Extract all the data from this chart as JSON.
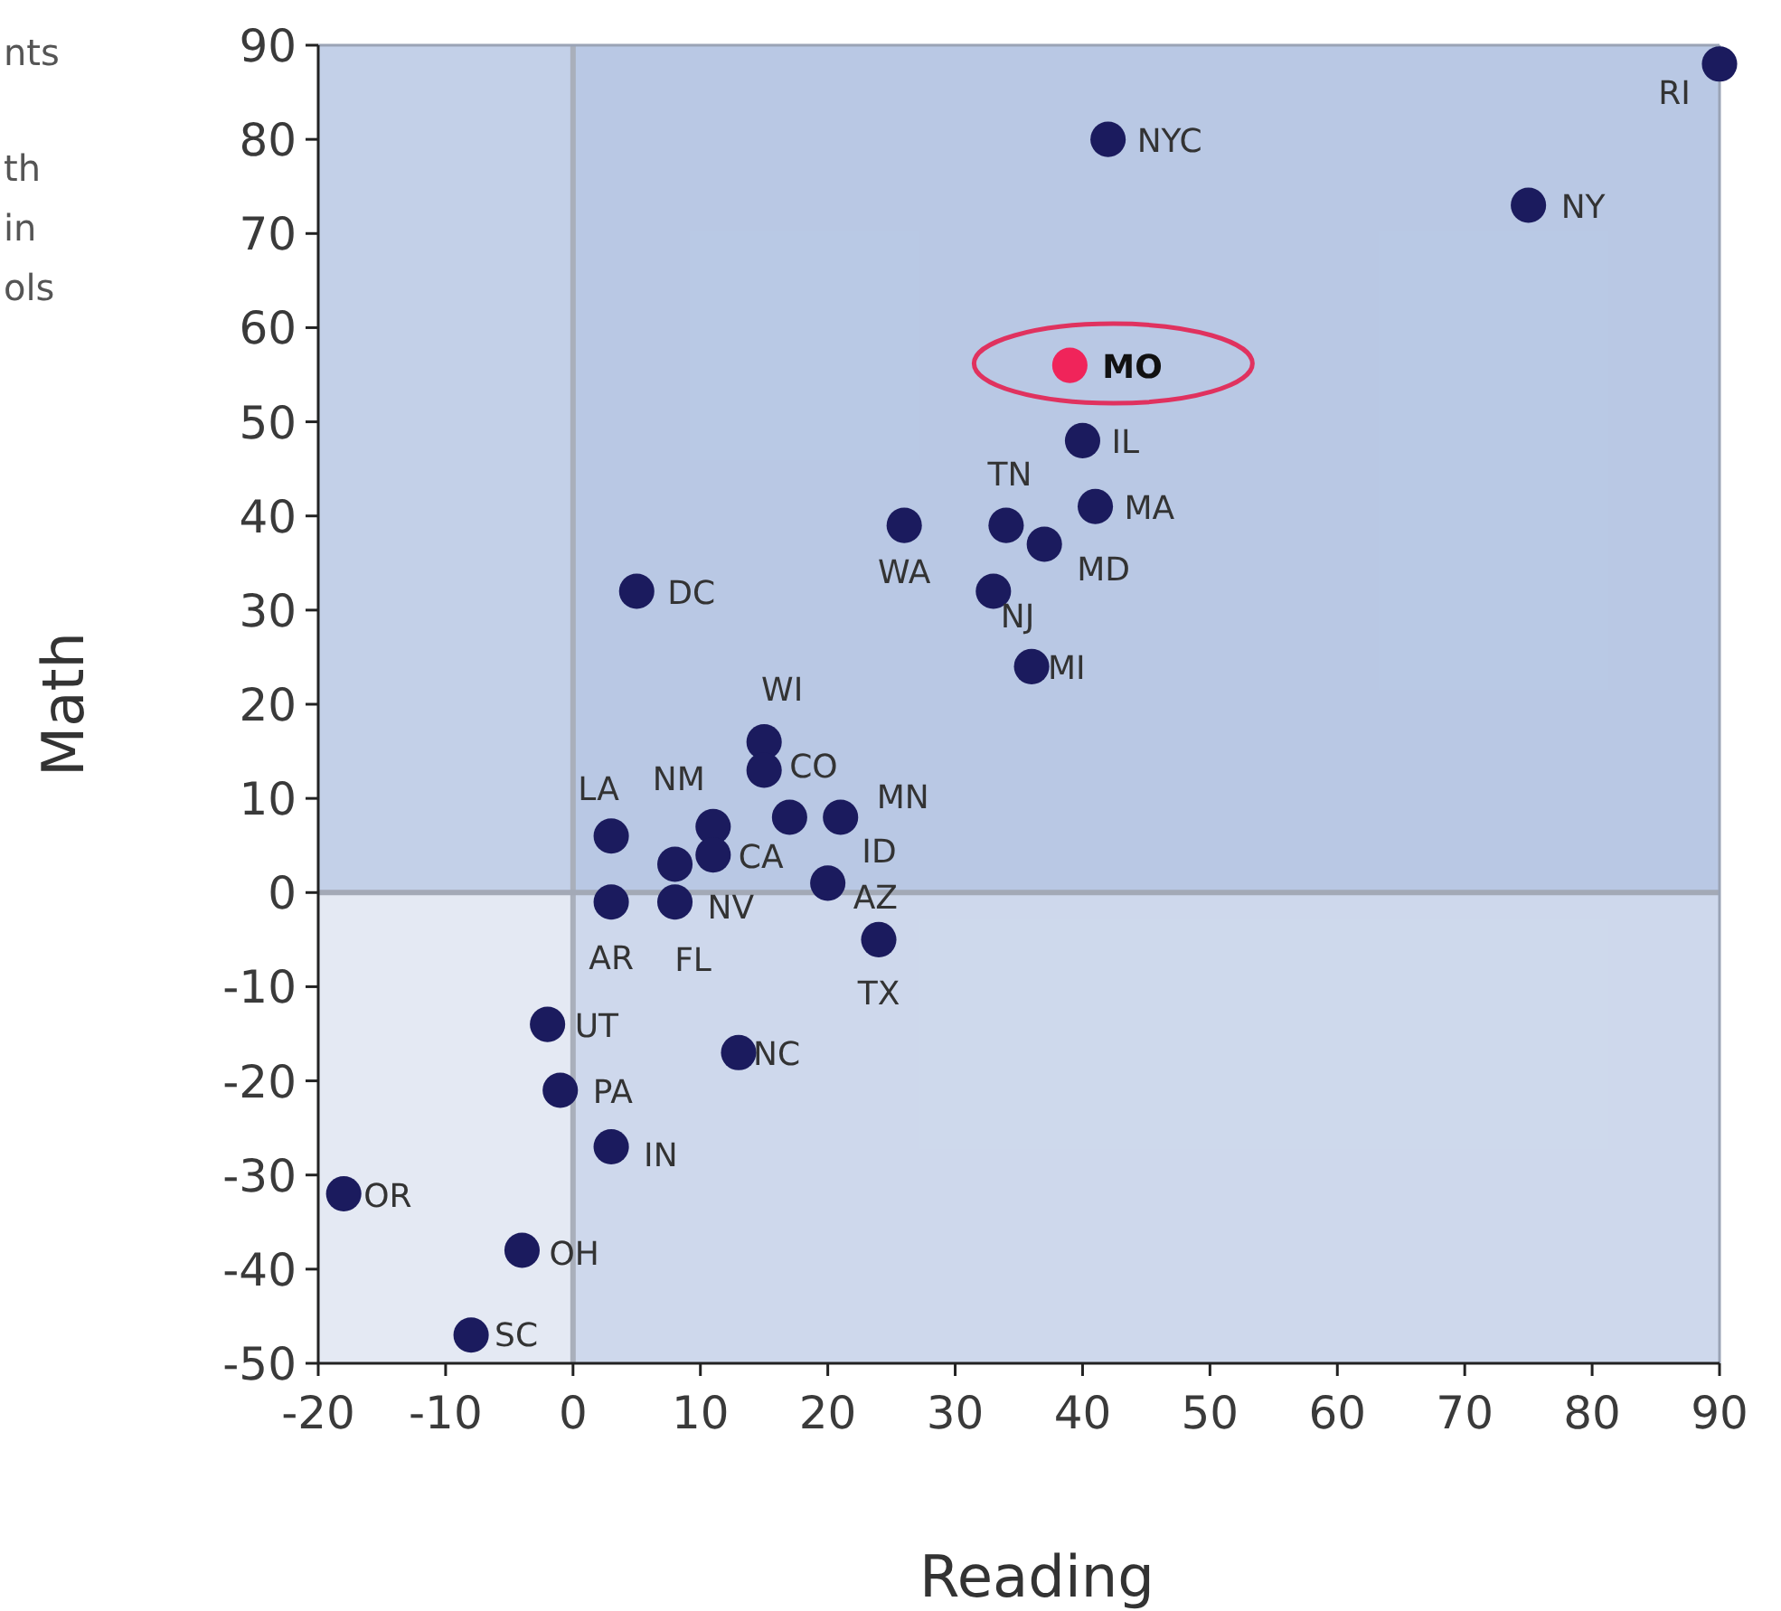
{
  "chart_data": {
    "type": "scatter",
    "xlabel": "Reading",
    "ylabel": "Math",
    "x": [
      90,
      42,
      75,
      39,
      40,
      34,
      41,
      26,
      37,
      33,
      36,
      5,
      15,
      15,
      3,
      11,
      11,
      21,
      17,
      8,
      3,
      8,
      20,
      24,
      -2,
      13,
      -1,
      3,
      -18,
      -4,
      -8
    ],
    "values": [
      88,
      80,
      73,
      56,
      48,
      39,
      41,
      39,
      37,
      32,
      24,
      32,
      16,
      13,
      6,
      7,
      4,
      8,
      8,
      3,
      -1,
      -1,
      1,
      -5,
      -14,
      -17,
      -21,
      -27,
      -32,
      -38,
      -47
    ],
    "colors": [
      "#1b1b5e",
      "#1b1b5e",
      "#1b1b5e",
      "#f0245a",
      "#1b1b5e",
      "#1b1b5e",
      "#1b1b5e",
      "#1b1b5e",
      "#1b1b5e",
      "#1b1b5e",
      "#1b1b5e",
      "#1b1b5e",
      "#1b1b5e",
      "#1b1b5e",
      "#1b1b5e",
      "#1b1b5e",
      "#1b1b5e",
      "#1b1b5e",
      "#1b1b5e",
      "#1b1b5e",
      "#1b1b5e",
      "#1b1b5e",
      "#1b1b5e",
      "#1b1b5e",
      "#1b1b5e",
      "#1b1b5e",
      "#1b1b5e",
      "#1b1b5e",
      "#1b1b5e",
      "#1b1b5e",
      "#1b1b5e"
    ],
    "marker": "circle",
    "xlim": [
      -20,
      90
    ],
    "xticks": [
      -20,
      -10,
      0,
      10,
      20,
      30,
      40,
      50,
      60,
      70,
      80,
      90
    ],
    "ylim": [
      -50,
      90
    ],
    "yticks": [
      -50,
      -40,
      -30,
      -20,
      -10,
      0,
      10,
      20,
      30,
      40,
      50,
      60,
      70,
      80,
      90
    ],
    "grid": false,
    "bands": [
      {
        "axis": "x",
        "from": 0,
        "to": 90,
        "color": "#bccbe6"
      },
      {
        "axis": "y",
        "from": 0,
        "to": 90,
        "color": "#a8bcdf"
      }
    ],
    "ref_lines": [
      {
        "axis": "x",
        "value": 0,
        "color": "#a9afbb"
      },
      {
        "axis": "y",
        "value": 0,
        "color": "#a3a9b6"
      }
    ],
    "annotations": [
      {
        "text": "RI",
        "x": 90,
        "y": 88
      },
      {
        "text": "NYC",
        "x": 42,
        "y": 80
      },
      {
        "text": "NY",
        "x": 75,
        "y": 73
      },
      {
        "text": "MO",
        "x": 39,
        "y": 56
      },
      {
        "text": "IL",
        "x": 40,
        "y": 48
      },
      {
        "text": "TN",
        "x": 34,
        "y": 39
      },
      {
        "text": "MA",
        "x": 41,
        "y": 41
      },
      {
        "text": "WA",
        "x": 26,
        "y": 39
      },
      {
        "text": "MD",
        "x": 37,
        "y": 37
      },
      {
        "text": "NJ",
        "x": 33,
        "y": 32
      },
      {
        "text": "MI",
        "x": 36,
        "y": 24
      },
      {
        "text": "DC",
        "x": 5,
        "y": 32
      },
      {
        "text": "WI",
        "x": 15,
        "y": 16
      },
      {
        "text": "CO",
        "x": 15,
        "y": 13
      },
      {
        "text": "LA",
        "x": 3,
        "y": 6
      },
      {
        "text": "NM",
        "x": 11,
        "y": 7
      },
      {
        "text": "CA",
        "x": 11,
        "y": 4
      },
      {
        "text": "MN",
        "x": 21,
        "y": 8
      },
      {
        "text": "ID",
        "x": 17,
        "y": 8
      },
      {
        "text": "NV",
        "x": 8,
        "y": 3
      },
      {
        "text": "AR",
        "x": 3,
        "y": -1
      },
      {
        "text": "FL",
        "x": 8,
        "y": -1
      },
      {
        "text": "AZ",
        "x": 20,
        "y": 1
      },
      {
        "text": "TX",
        "x": 24,
        "y": -5
      },
      {
        "text": "UT",
        "x": -2,
        "y": -14
      },
      {
        "text": "NC",
        "x": 13,
        "y": -17
      },
      {
        "text": "PA",
        "x": -1,
        "y": -21
      },
      {
        "text": "IN",
        "x": 3,
        "y": -27
      },
      {
        "text": "OR",
        "x": -18,
        "y": -32
      },
      {
        "text": "OH",
        "x": -4,
        "y": -38
      },
      {
        "text": "SC",
        "x": -8,
        "y": -47
      },
      "nts",
      "th",
      "in",
      "ols"
    ]
  }
}
